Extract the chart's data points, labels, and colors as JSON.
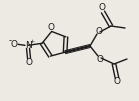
{
  "bg_color": "#ede9e3",
  "line_color": "#1a1a1a",
  "line_width": 1.0,
  "figsize": [
    1.39,
    1.01
  ],
  "dpi": 100,
  "xlim": [
    0,
    139
  ],
  "ylim": [
    0,
    101
  ]
}
